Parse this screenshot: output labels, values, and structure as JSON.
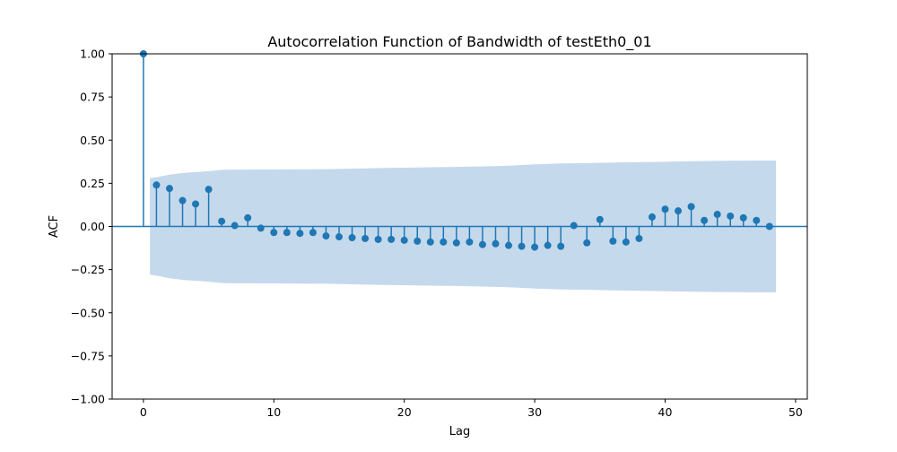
{
  "chart_data": {
    "type": "stem",
    "title": "Autocorrelation Function of Bandwidth of testEth0_01",
    "xlabel": "Lag",
    "ylabel": "ACF",
    "xlim": [
      -2.4,
      50.9
    ],
    "ylim": [
      -1.0,
      1.0
    ],
    "xticks": [
      0,
      10,
      20,
      30,
      40,
      50
    ],
    "yticks": [
      1.0,
      0.75,
      0.5,
      0.25,
      0.0,
      -0.25,
      -0.5,
      -0.75,
      -1.0
    ],
    "xtick_labels": [
      "0",
      "10",
      "20",
      "30",
      "40",
      "50"
    ],
    "ytick_labels": [
      "1.00",
      "0.75",
      "0.50",
      "0.25",
      "0.00",
      "−0.25",
      "−0.50",
      "−0.75",
      "−1.00"
    ],
    "grid": false,
    "legend": "none",
    "lags": [
      0,
      1,
      2,
      3,
      4,
      5,
      6,
      7,
      8,
      9,
      10,
      11,
      12,
      13,
      14,
      15,
      16,
      17,
      18,
      19,
      20,
      21,
      22,
      23,
      24,
      25,
      26,
      27,
      28,
      29,
      30,
      31,
      32,
      33,
      34,
      35,
      36,
      37,
      38,
      39,
      40,
      41,
      42,
      43,
      44,
      45,
      46,
      47,
      48
    ],
    "acf": [
      1.0,
      0.24,
      0.22,
      0.15,
      0.13,
      0.215,
      0.03,
      0.005,
      0.05,
      -0.01,
      -0.035,
      -0.035,
      -0.04,
      -0.035,
      -0.055,
      -0.06,
      -0.065,
      -0.07,
      -0.075,
      -0.075,
      -0.08,
      -0.085,
      -0.09,
      -0.09,
      -0.095,
      -0.09,
      -0.105,
      -0.1,
      -0.11,
      -0.115,
      -0.12,
      -0.11,
      -0.115,
      0.005,
      -0.095,
      0.04,
      -0.085,
      -0.09,
      -0.07,
      0.055,
      0.1,
      0.09,
      0.115,
      0.035,
      0.07,
      0.06,
      0.05,
      0.035,
      0.0
    ],
    "confidence_band": {
      "lags": [
        0.5,
        1,
        2,
        3,
        4,
        5,
        6,
        7,
        8,
        9,
        10,
        12,
        14,
        16,
        18,
        20,
        22,
        24,
        26,
        28,
        30,
        32,
        34,
        36,
        38,
        40,
        42,
        44,
        46,
        48,
        48.5
      ],
      "upper": [
        0.28,
        0.285,
        0.3,
        0.31,
        0.315,
        0.32,
        0.328,
        0.329,
        0.329,
        0.33,
        0.33,
        0.331,
        0.332,
        0.335,
        0.338,
        0.34,
        0.343,
        0.345,
        0.348,
        0.352,
        0.36,
        0.365,
        0.367,
        0.37,
        0.373,
        0.375,
        0.378,
        0.38,
        0.381,
        0.382,
        0.382
      ]
    },
    "colors": {
      "marker": "#1f77b4",
      "band": "#c5d9ec",
      "zero_line": "#1f77b4",
      "axes": "#000000"
    }
  }
}
